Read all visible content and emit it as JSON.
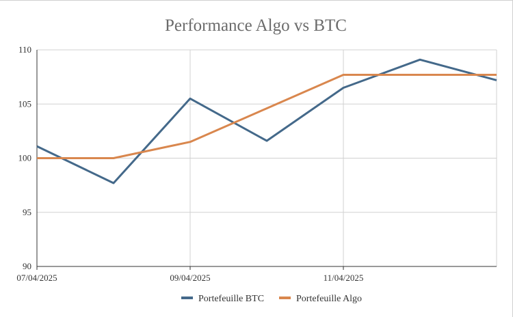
{
  "chart_data": {
    "type": "line",
    "title": "Performance Algo vs BTC",
    "xlabel": "",
    "ylabel": "",
    "x": [
      "07/04/2025",
      "08/04/2025",
      "09/04/2025",
      "10/04/2025",
      "11/04/2025",
      "12/04/2025",
      "13/04/2025"
    ],
    "x_tick_labels": [
      "07/04/2025",
      "09/04/2025",
      "11/04/2025"
    ],
    "y_ticks": [
      90,
      95,
      100,
      105,
      110
    ],
    "ylim": [
      90,
      110
    ],
    "grid": true,
    "legend_position": "bottom",
    "series": [
      {
        "name": "Portefeuille BTC",
        "color": "#44698a",
        "values": [
          101.1,
          97.7,
          105.5,
          101.6,
          106.5,
          109.1,
          107.2
        ]
      },
      {
        "name": "Portefeuille Algo",
        "color": "#d9874e",
        "values": [
          100.0,
          100.0,
          101.5,
          104.6,
          107.7,
          107.7,
          107.7
        ]
      }
    ]
  }
}
